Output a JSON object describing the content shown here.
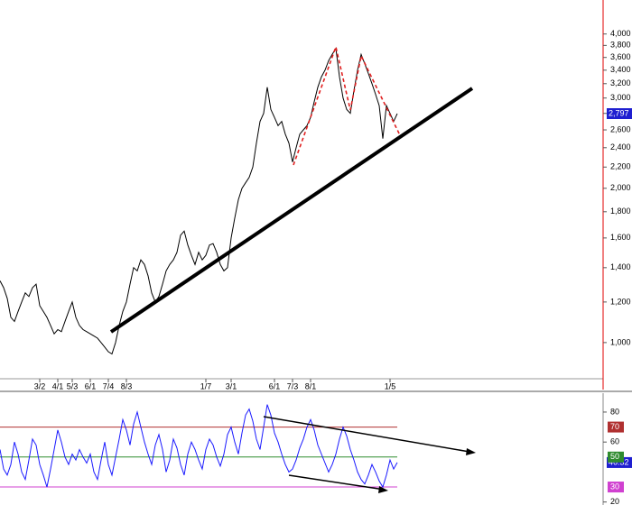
{
  "chart_data": [
    {
      "type": "line",
      "log_scale": true,
      "color": "#000000",
      "categories": [
        null,
        null,
        null,
        null,
        null,
        null,
        null,
        null,
        null,
        null,
        null,
        "3/2",
        null,
        null,
        null,
        null,
        "4/1",
        null,
        null,
        null,
        "5/3",
        null,
        null,
        null,
        null,
        "6/1",
        null,
        null,
        null,
        null,
        "7/4",
        null,
        null,
        null,
        null,
        "8/3",
        null,
        null,
        null,
        null,
        null,
        null,
        null,
        null,
        null,
        null,
        null,
        null,
        null,
        null,
        null,
        null,
        null,
        null,
        null,
        null,
        null,
        "1/7",
        null,
        null,
        null,
        null,
        null,
        null,
        "3/1",
        null,
        null,
        null,
        null,
        null,
        null,
        null,
        null,
        null,
        null,
        null,
        "6/1",
        null,
        null,
        null,
        null,
        "7/3",
        null,
        null,
        null,
        null,
        "8/1",
        null,
        null,
        null,
        null,
        null,
        null,
        null,
        null,
        null,
        null,
        null,
        null,
        null,
        null,
        null,
        null,
        null,
        null,
        null,
        null,
        null,
        "1/5",
        null,
        null
      ],
      "values": [
        1320,
        1280,
        1220,
        1120,
        1100,
        1150,
        1200,
        1250,
        1230,
        1280,
        1300,
        1180,
        1150,
        1120,
        1080,
        1040,
        1060,
        1050,
        1100,
        1150,
        1200,
        1120,
        1080,
        1060,
        1050,
        1040,
        1030,
        1020,
        1000,
        980,
        960,
        950,
        1000,
        1080,
        1150,
        1200,
        1300,
        1400,
        1380,
        1450,
        1420,
        1350,
        1250,
        1200,
        1230,
        1300,
        1380,
        1420,
        1450,
        1500,
        1620,
        1650,
        1550,
        1480,
        1420,
        1500,
        1450,
        1480,
        1550,
        1560,
        1500,
        1420,
        1380,
        1400,
        1600,
        1750,
        1900,
        2000,
        2050,
        2100,
        2200,
        2450,
        2700,
        2800,
        3150,
        2850,
        2750,
        2650,
        2700,
        2550,
        2450,
        2250,
        2400,
        2550,
        2600,
        2650,
        2750,
        2950,
        3150,
        3300,
        3400,
        3550,
        3650,
        3750,
        3300,
        3000,
        2850,
        2800,
        3100,
        3400,
        3650,
        3500,
        3350,
        3200,
        3050,
        2900,
        2500,
        2900,
        2800,
        2700,
        2797
      ],
      "ylim": [
        850,
        4660
      ],
      "yticks": [
        {
          "value": 1000,
          "label": "1,000"
        },
        {
          "value": 1200,
          "label": "1,200"
        },
        {
          "value": 1400,
          "label": "1,400"
        },
        {
          "value": 1600,
          "label": "1,600"
        },
        {
          "value": 1800,
          "label": "1,800"
        },
        {
          "value": 2000,
          "label": "2,000"
        },
        {
          "value": 2200,
          "label": "2,200"
        },
        {
          "value": 2400,
          "label": "2,400"
        },
        {
          "value": 2600,
          "label": "2,600"
        },
        {
          "value": 2800,
          "label": "2,800"
        },
        {
          "value": 3000,
          "label": "3,000"
        },
        {
          "value": 3200,
          "label": "3,200"
        },
        {
          "value": 3400,
          "label": "3,400"
        },
        {
          "value": 3600,
          "label": "3,600"
        },
        {
          "value": 3800,
          "label": "3,800"
        },
        {
          "value": 4000,
          "label": "4,000"
        }
      ],
      "last_value": {
        "value": 2797,
        "label": "2,797",
        "color": "#1f1fd0"
      }
    },
    {
      "type": "line",
      "color": "#1a1aff",
      "values": [
        55,
        42,
        38,
        45,
        60,
        52,
        40,
        35,
        48,
        62,
        58,
        45,
        38,
        30,
        42,
        55,
        68,
        60,
        50,
        45,
        52,
        48,
        55,
        50,
        46,
        52,
        40,
        35,
        48,
        60,
        45,
        38,
        50,
        62,
        75,
        68,
        58,
        72,
        80,
        70,
        60,
        52,
        45,
        58,
        65,
        55,
        40,
        48,
        62,
        56,
        45,
        38,
        52,
        60,
        55,
        48,
        42,
        55,
        62,
        58,
        50,
        44,
        52,
        65,
        70,
        60,
        52,
        66,
        78,
        82,
        74,
        62,
        55,
        70,
        85,
        78,
        66,
        60,
        52,
        45,
        40,
        42,
        48,
        56,
        62,
        70,
        75,
        68,
        58,
        52,
        46,
        40,
        45,
        52,
        62,
        70,
        64,
        55,
        48,
        40,
        35,
        32,
        38,
        45,
        40,
        34,
        30,
        38,
        48,
        42,
        46.32
      ],
      "ylim": [
        18,
        92
      ],
      "yticks": [
        20,
        60,
        80
      ],
      "levels": [
        {
          "value": 70,
          "color": "#b03030"
        },
        {
          "value": 50,
          "color": "#2e8b2e"
        },
        {
          "value": 30,
          "color": "#d040d0"
        }
      ],
      "last_value": {
        "value": 46.32,
        "color": "#1f1fd0"
      }
    }
  ]
}
